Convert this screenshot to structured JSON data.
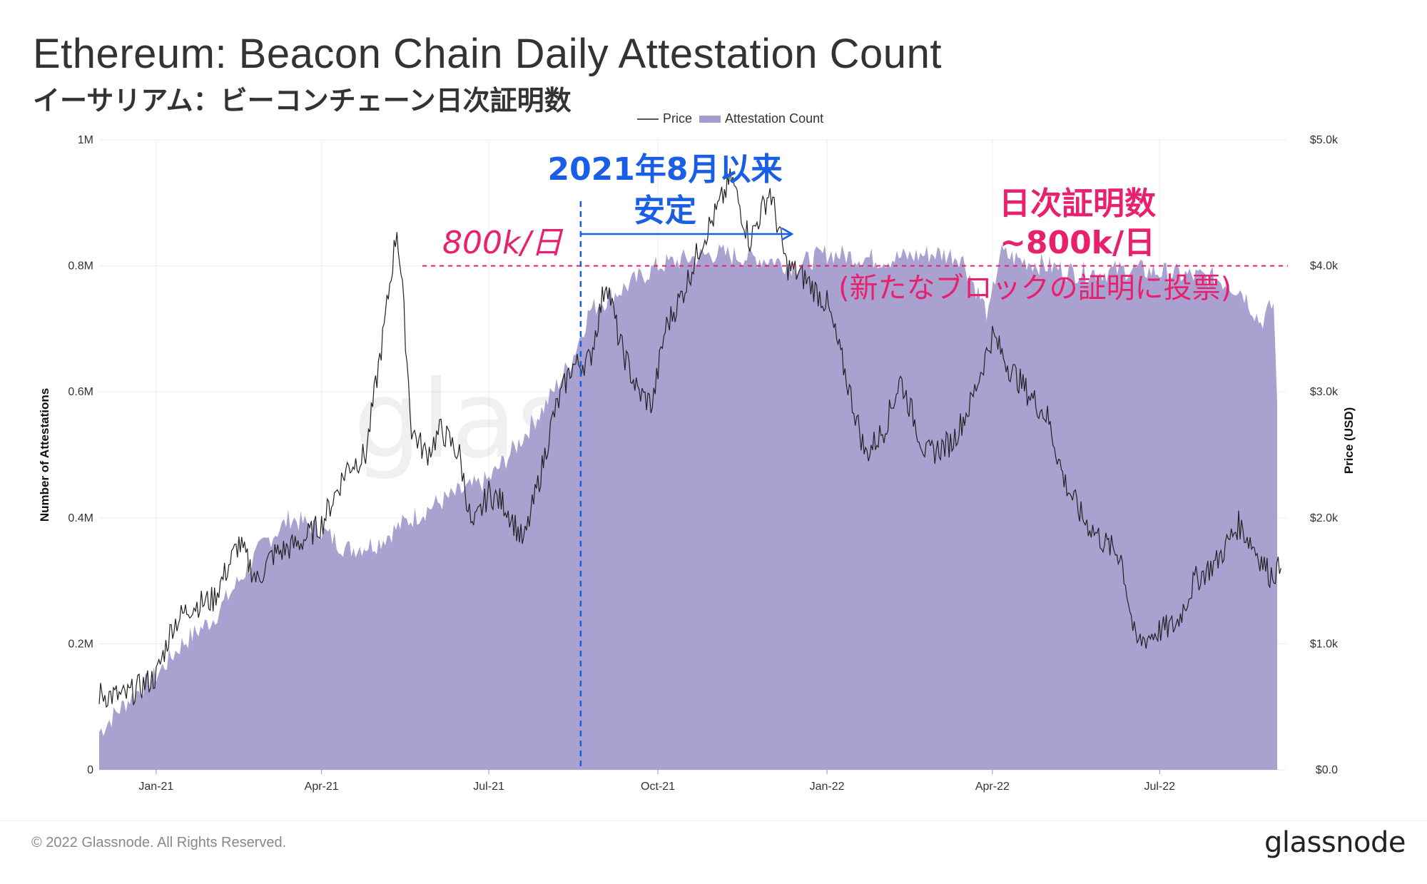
{
  "header": {
    "title": "Ethereum: Beacon Chain Daily Attestation Count",
    "subtitle": "イーサリアム：ビーコンチェーン日次証明数"
  },
  "legend": {
    "price": "Price",
    "attestation": "Attestation Count"
  },
  "footer": {
    "copyright": "© 2022 Glassnode. All Rights Reserved.",
    "brand": "glassnode"
  },
  "watermark": "glassnode",
  "annotations": {
    "stable_line1": "2021年8月以来",
    "stable_line2": "安定",
    "level_label": "800k/日",
    "daily_line1": "日次証明数",
    "daily_line2": "~800k/日",
    "daily_line3": "(新たなブロックの証明に投票)"
  },
  "colors": {
    "area": "#a49ccc",
    "price": "#222222",
    "blue": "#1a5ee6",
    "pink": "#e8206e"
  },
  "chart_data": {
    "type": "area",
    "x_ticks": [
      "Jan-21",
      "Apr-21",
      "Jul-21",
      "Oct-21",
      "Jan-22",
      "Apr-22",
      "Jul-22"
    ],
    "left_axis": {
      "label": "Number of Attestations",
      "ticks": [
        "0",
        "0.2M",
        "0.4M",
        "0.6M",
        "0.8M",
        "1M"
      ],
      "range": [
        0,
        1000000
      ]
    },
    "right_axis": {
      "label": "Price (USD)",
      "ticks": [
        "$0.0",
        "$1.0k",
        "$2.0k",
        "$3.0k",
        "$4.0k",
        "$5.0k"
      ],
      "range": [
        0,
        5000
      ]
    },
    "x_range": [
      "2020-12-01",
      "2022-09-08"
    ],
    "series": [
      {
        "name": "Attestation Count",
        "style": "area",
        "points": [
          [
            "2020-12-01",
            60000
          ],
          [
            "2020-12-10",
            90000
          ],
          [
            "2020-12-20",
            120000
          ],
          [
            "2021-01-01",
            150000
          ],
          [
            "2021-01-15",
            200000
          ],
          [
            "2021-02-01",
            240000
          ],
          [
            "2021-02-15",
            300000
          ],
          [
            "2021-03-01",
            360000
          ],
          [
            "2021-03-15",
            400000
          ],
          [
            "2021-04-01",
            380000
          ],
          [
            "2021-04-15",
            350000
          ],
          [
            "2021-05-01",
            360000
          ],
          [
            "2021-05-15",
            390000
          ],
          [
            "2021-06-01",
            420000
          ],
          [
            "2021-06-15",
            440000
          ],
          [
            "2021-07-01",
            460000
          ],
          [
            "2021-07-15",
            510000
          ],
          [
            "2021-08-01",
            580000
          ],
          [
            "2021-08-15",
            650000
          ],
          [
            "2021-08-25",
            730000
          ],
          [
            "2021-09-10",
            760000
          ],
          [
            "2021-10-01",
            800000
          ],
          [
            "2021-10-15",
            810000
          ],
          [
            "2021-11-01",
            820000
          ],
          [
            "2021-11-15",
            815000
          ],
          [
            "2021-12-01",
            810000
          ],
          [
            "2021-12-15",
            800000
          ],
          [
            "2022-01-01",
            820000
          ],
          [
            "2022-01-15",
            815000
          ],
          [
            "2022-02-01",
            810000
          ],
          [
            "2022-02-15",
            815000
          ],
          [
            "2022-03-01",
            820000
          ],
          [
            "2022-03-15",
            815000
          ],
          [
            "2022-03-30",
            720000
          ],
          [
            "2022-04-05",
            820000
          ],
          [
            "2022-04-15",
            810000
          ],
          [
            "2022-05-01",
            800000
          ],
          [
            "2022-05-15",
            790000
          ],
          [
            "2022-06-01",
            790000
          ],
          [
            "2022-06-15",
            795000
          ],
          [
            "2022-07-01",
            790000
          ],
          [
            "2022-07-15",
            785000
          ],
          [
            "2022-08-01",
            780000
          ],
          [
            "2022-08-15",
            760000
          ],
          [
            "2022-08-25",
            710000
          ],
          [
            "2022-09-01",
            740000
          ],
          [
            "2022-09-03",
            580000
          ]
        ]
      },
      {
        "name": "Price",
        "style": "line",
        "axis": "right",
        "points": [
          [
            "2020-12-01",
            600
          ],
          [
            "2020-12-15",
            580
          ],
          [
            "2021-01-01",
            740
          ],
          [
            "2021-01-10",
            1150
          ],
          [
            "2021-01-20",
            1300
          ],
          [
            "2021-02-01",
            1350
          ],
          [
            "2021-02-15",
            1800
          ],
          [
            "2021-02-25",
            1500
          ],
          [
            "2021-03-05",
            1700
          ],
          [
            "2021-03-20",
            1800
          ],
          [
            "2021-04-01",
            1950
          ],
          [
            "2021-04-15",
            2400
          ],
          [
            "2021-04-25",
            2500
          ],
          [
            "2021-05-05",
            3500
          ],
          [
            "2021-05-12",
            4300
          ],
          [
            "2021-05-15",
            3800
          ],
          [
            "2021-05-20",
            2700
          ],
          [
            "2021-05-28",
            2500
          ],
          [
            "2021-06-05",
            2700
          ],
          [
            "2021-06-15",
            2500
          ],
          [
            "2021-06-22",
            1900
          ],
          [
            "2021-07-01",
            2200
          ],
          [
            "2021-07-10",
            2100
          ],
          [
            "2021-07-20",
            1800
          ],
          [
            "2021-07-30",
            2400
          ],
          [
            "2021-08-05",
            2800
          ],
          [
            "2021-08-15",
            3200
          ],
          [
            "2021-08-25",
            3250
          ],
          [
            "2021-09-03",
            3900
          ],
          [
            "2021-09-10",
            3400
          ],
          [
            "2021-09-20",
            3000
          ],
          [
            "2021-09-28",
            2900
          ],
          [
            "2021-10-05",
            3500
          ],
          [
            "2021-10-15",
            3800
          ],
          [
            "2021-10-25",
            4200
          ],
          [
            "2021-11-01",
            4400
          ],
          [
            "2021-11-10",
            4700
          ],
          [
            "2021-11-20",
            4200
          ],
          [
            "2021-12-01",
            4600
          ],
          [
            "2021-12-10",
            4000
          ],
          [
            "2021-12-20",
            3900
          ],
          [
            "2022-01-01",
            3700
          ],
          [
            "2022-01-10",
            3200
          ],
          [
            "2022-01-22",
            2500
          ],
          [
            "2022-02-01",
            2700
          ],
          [
            "2022-02-10",
            3100
          ],
          [
            "2022-02-24",
            2500
          ],
          [
            "2022-03-10",
            2600
          ],
          [
            "2022-03-20",
            2900
          ],
          [
            "2022-04-01",
            3450
          ],
          [
            "2022-04-10",
            3200
          ],
          [
            "2022-04-20",
            3000
          ],
          [
            "2022-05-01",
            2800
          ],
          [
            "2022-05-10",
            2300
          ],
          [
            "2022-05-20",
            2000
          ],
          [
            "2022-06-01",
            1800
          ],
          [
            "2022-06-10",
            1700
          ],
          [
            "2022-06-18",
            1000
          ],
          [
            "2022-06-30",
            1100
          ],
          [
            "2022-07-10",
            1150
          ],
          [
            "2022-07-20",
            1500
          ],
          [
            "2022-08-01",
            1650
          ],
          [
            "2022-08-13",
            1950
          ],
          [
            "2022-08-20",
            1800
          ],
          [
            "2022-08-30",
            1550
          ],
          [
            "2022-09-05",
            1600
          ]
        ]
      }
    ],
    "reference_line": {
      "axis": "left",
      "value": 800000,
      "label": "800k/日"
    },
    "event_line": {
      "date": "2021-08-20"
    }
  }
}
